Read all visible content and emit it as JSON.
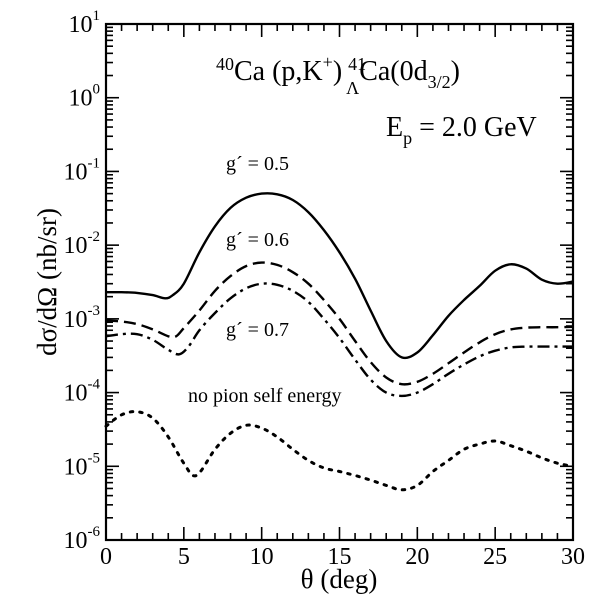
{
  "chart_data": {
    "type": "line",
    "title": "",
    "xlabel": "θ (deg)",
    "ylabel": "dσ/dΩ (nb/sr)",
    "xlim": [
      0,
      30
    ],
    "ylim": [
      1e-06,
      10
    ],
    "y_scale": "log",
    "grid": false,
    "x_ticks": [
      0,
      5,
      10,
      15,
      20,
      25,
      30
    ],
    "y_ticks": [
      {
        "base": "10",
        "exp": "-6"
      },
      {
        "base": "10",
        "exp": "-5"
      },
      {
        "base": "10",
        "exp": "-4"
      },
      {
        "base": "10",
        "exp": "-3"
      },
      {
        "base": "10",
        "exp": "-2"
      },
      {
        "base": "10",
        "exp": "-1"
      },
      {
        "base": "10",
        "exp": "0"
      },
      {
        "base": "10",
        "exp": "1"
      }
    ],
    "annotations": {
      "reaction": {
        "mass_a": "40",
        "part_a": "Ca (p,K",
        "plus": "+",
        "part_b": ")",
        "mass_b": "41",
        "lambda": "Λ",
        "part_c": "Ca(0d",
        "sub": "3/2",
        "part_d": ")"
      },
      "energy": {
        "e": "E",
        "p": "p",
        "rest": " = 2.0 GeV"
      }
    },
    "series": [
      {
        "name": "g´ = 0.5",
        "style": "solid",
        "x": [
          0,
          1,
          2,
          3,
          3.8,
          4.3,
          5,
          6,
          7,
          8,
          9,
          10,
          11,
          12,
          13,
          14,
          15,
          16,
          17,
          18,
          19,
          20,
          21,
          22,
          23,
          24,
          25,
          26,
          27,
          28,
          29,
          30
        ],
        "y": [
          0.0023,
          0.0023,
          0.00225,
          0.0021,
          0.0019,
          0.0021,
          0.003,
          0.008,
          0.018,
          0.032,
          0.044,
          0.05,
          0.049,
          0.041,
          0.028,
          0.016,
          0.008,
          0.0035,
          0.0013,
          0.0005,
          0.0003,
          0.00035,
          0.0006,
          0.0011,
          0.0018,
          0.0028,
          0.0045,
          0.0055,
          0.0048,
          0.0034,
          0.003,
          0.0032
        ]
      },
      {
        "name": "g´ = 0.6",
        "style": "dashed",
        "x": [
          0,
          1,
          2,
          3,
          4,
          4.5,
          5,
          6,
          7,
          8,
          9,
          10,
          11,
          12,
          13,
          14,
          15,
          16,
          17,
          18,
          19,
          20,
          21,
          22,
          23,
          24,
          25,
          26,
          27,
          28,
          29,
          30
        ],
        "y": [
          0.00095,
          0.00092,
          0.00085,
          0.00072,
          0.00058,
          0.00058,
          0.00075,
          0.0013,
          0.0024,
          0.0038,
          0.0052,
          0.0058,
          0.0054,
          0.0043,
          0.003,
          0.0018,
          0.001,
          0.0005,
          0.00026,
          0.00016,
          0.00013,
          0.00014,
          0.00018,
          0.00025,
          0.00035,
          0.00048,
          0.00062,
          0.00072,
          0.00076,
          0.00077,
          0.00077,
          0.00078
        ]
      },
      {
        "name": "g´ = 0.7",
        "style": "dashdot",
        "x": [
          0,
          1,
          2,
          3,
          4,
          4.7,
          5.3,
          6,
          7,
          8,
          9,
          10,
          11,
          12,
          13,
          14,
          15,
          16,
          17,
          18,
          19,
          20,
          21,
          22,
          23,
          24,
          25,
          26,
          27,
          28,
          29,
          30
        ],
        "y": [
          0.00058,
          0.00062,
          0.00062,
          0.00052,
          0.00038,
          0.00033,
          0.00042,
          0.0007,
          0.0012,
          0.0019,
          0.0026,
          0.003,
          0.0029,
          0.0024,
          0.0017,
          0.001,
          0.00055,
          0.00028,
          0.00015,
          0.0001,
          9e-05,
          0.0001,
          0.00013,
          0.00018,
          0.00024,
          0.00031,
          0.00037,
          0.00041,
          0.00042,
          0.00042,
          0.00042,
          0.00042
        ]
      },
      {
        "name": "no pion self energy",
        "style": "dotted",
        "x": [
          0,
          1,
          2,
          3,
          4,
          5,
          5.8,
          7,
          8,
          9,
          10,
          11,
          12,
          13,
          14,
          15,
          16,
          17,
          18,
          19,
          20,
          21,
          22,
          23,
          24,
          25,
          26,
          27,
          28,
          29,
          30
        ],
        "y": [
          3.5e-05,
          5e-05,
          5.5e-05,
          4.5e-05,
          2.5e-05,
          1.1e-05,
          7.5e-06,
          1.7e-05,
          2.8e-05,
          3.6e-05,
          3.3e-05,
          2.5e-05,
          1.7e-05,
          1.2e-05,
          9.5e-06,
          8.5e-06,
          7.5e-06,
          6.5e-06,
          5.5e-06,
          4.8e-06,
          5.5e-06,
          8.5e-06,
          1.2e-05,
          1.7e-05,
          2e-05,
          2.2e-05,
          1.9e-05,
          1.6e-05,
          1.3e-05,
          1.1e-05,
          1e-05
        ]
      }
    ]
  }
}
